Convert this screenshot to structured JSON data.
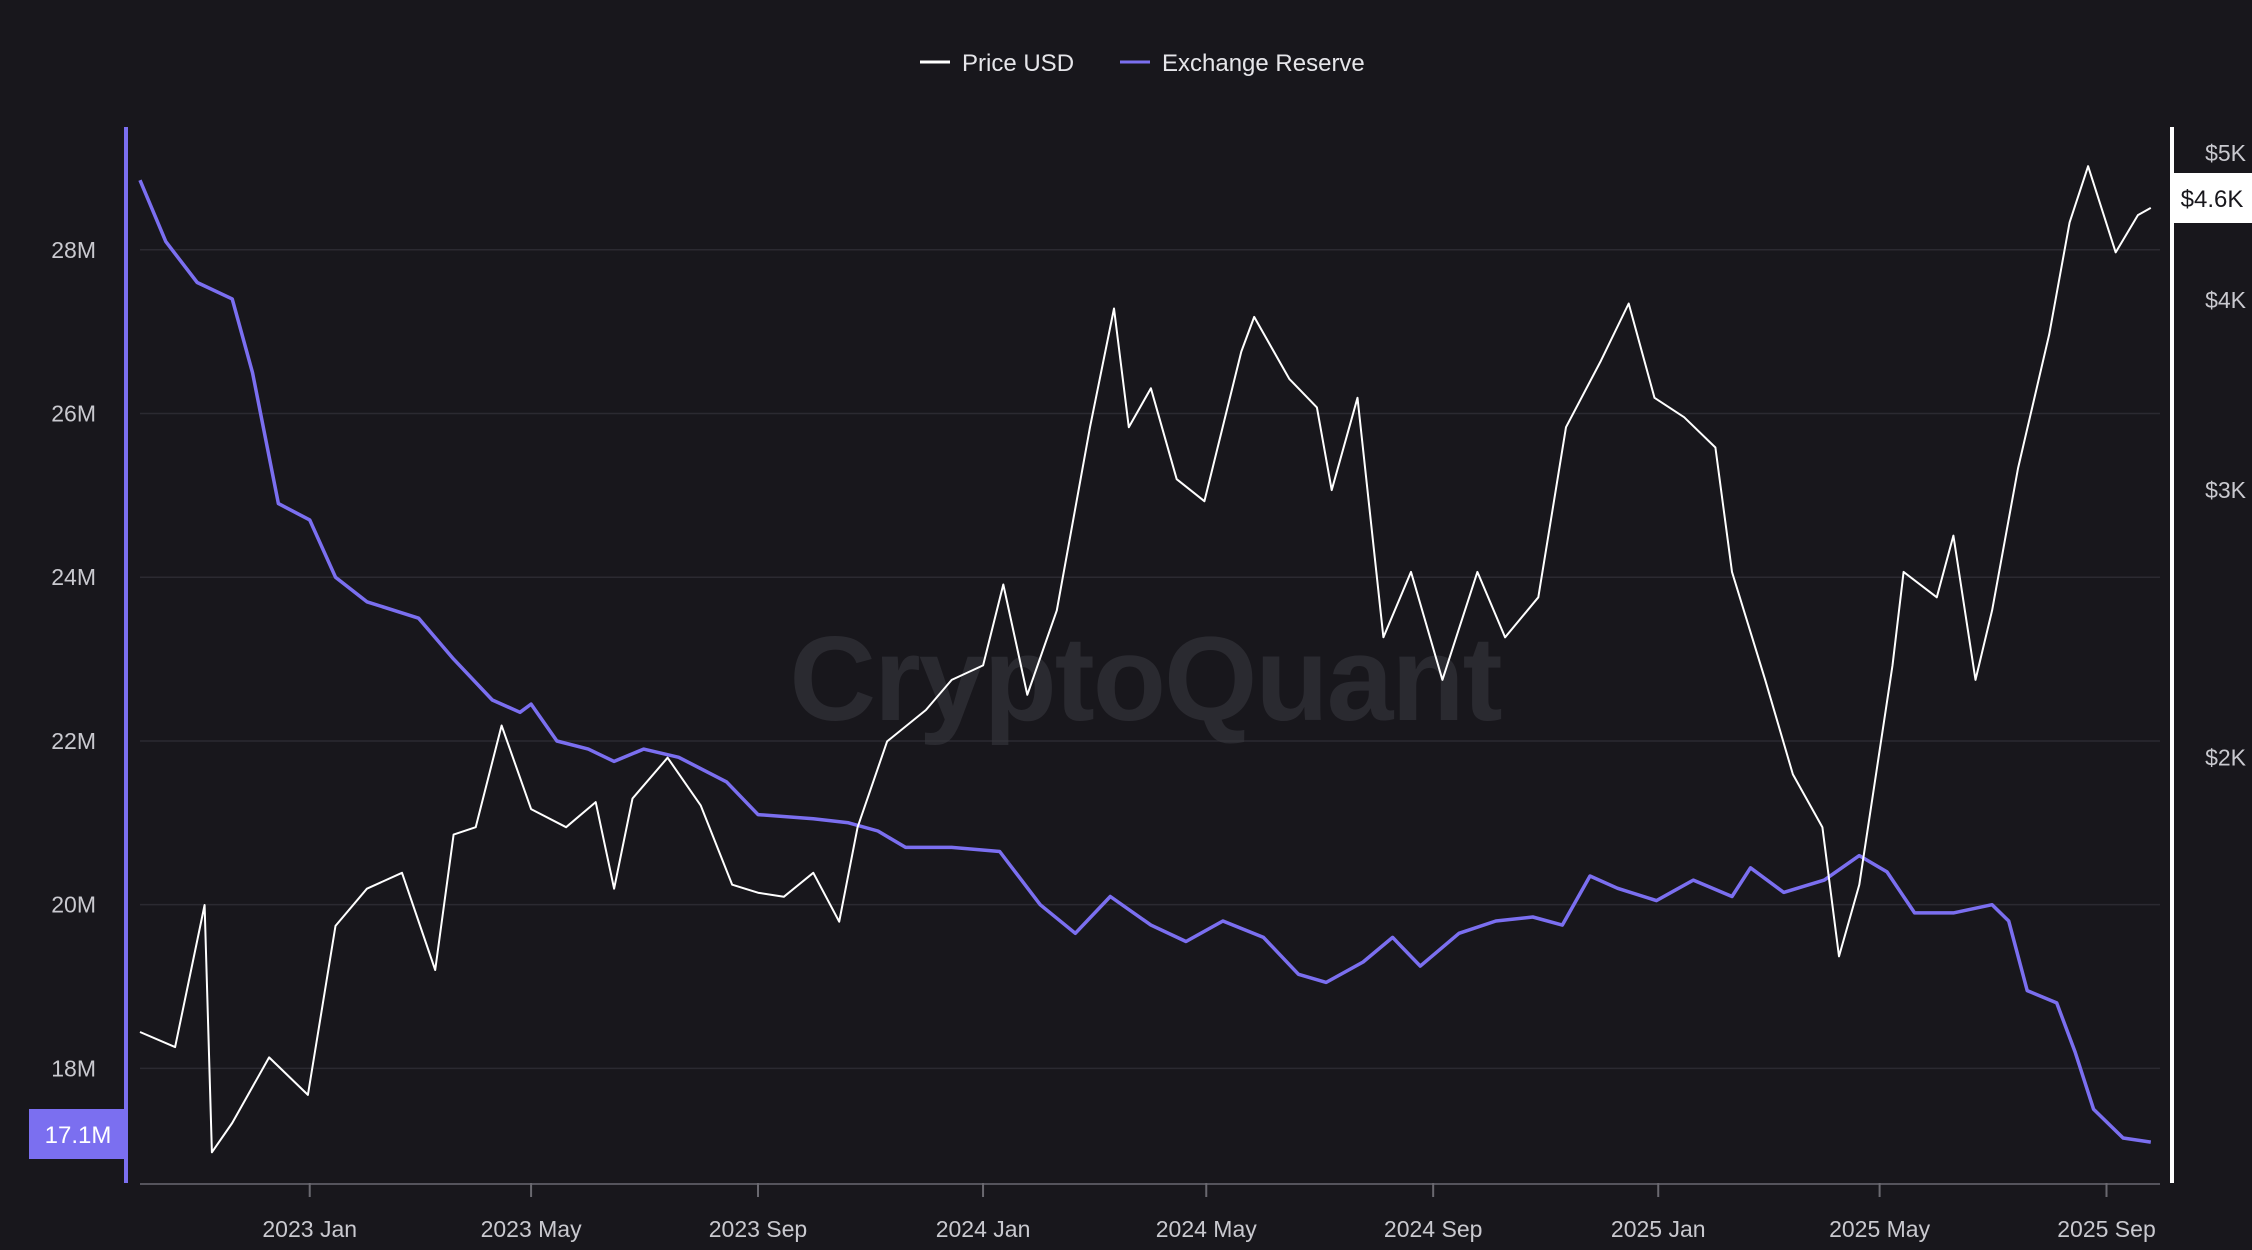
{
  "watermark": "CryptoQuant",
  "colors": {
    "background": "#18171c",
    "price": "#ffffff",
    "reserve": "#7b6ff0",
    "grid": "#2b2a31"
  },
  "chart_data": {
    "type": "line",
    "x_range": [
      "2022-10-01",
      "2025-09-30"
    ],
    "x_ticks": [
      "2023 Jan",
      "2023 May",
      "2023 Sep",
      "2024 Jan",
      "2024 May",
      "2024 Sep",
      "2025 Jan",
      "2025 May",
      "2025 Sep"
    ],
    "x_tick_dates": [
      "2023-01-01",
      "2023-05-01",
      "2023-09-01",
      "2024-01-01",
      "2024-05-01",
      "2024-09-01",
      "2025-01-01",
      "2025-05-01",
      "2025-09-01"
    ],
    "left_axis": {
      "ylim": [
        16.6,
        29.5
      ],
      "ticks": [
        18,
        20,
        22,
        24,
        26,
        28
      ],
      "tick_labels": [
        "18M",
        "20M",
        "22M",
        "24M",
        "26M",
        "28M"
      ],
      "current_label": "17.1M"
    },
    "right_axis": {
      "scale": "log",
      "ylim": [
        1050,
        5200
      ],
      "ticks": [
        2000,
        3000,
        4000,
        5000
      ],
      "tick_labels": [
        "$2K",
        "$3K",
        "$4K",
        "$5K"
      ],
      "current_label": "$4.6K"
    },
    "grid": true,
    "legend_position": "top-center",
    "series": [
      {
        "name": "Price USD",
        "axis": "right",
        "color": "#ffffff",
        "points": [
          [
            "2022-10-01",
            1320
          ],
          [
            "2022-10-20",
            1290
          ],
          [
            "2022-11-05",
            1600
          ],
          [
            "2022-11-09",
            1100
          ],
          [
            "2022-11-20",
            1150
          ],
          [
            "2022-12-10",
            1270
          ],
          [
            "2022-12-31",
            1200
          ],
          [
            "2023-01-15",
            1550
          ],
          [
            "2023-02-01",
            1640
          ],
          [
            "2023-02-20",
            1680
          ],
          [
            "2023-03-10",
            1450
          ],
          [
            "2023-03-20",
            1780
          ],
          [
            "2023-04-01",
            1800
          ],
          [
            "2023-04-15",
            2100
          ],
          [
            "2023-05-01",
            1850
          ],
          [
            "2023-05-20",
            1800
          ],
          [
            "2023-06-05",
            1870
          ],
          [
            "2023-06-15",
            1640
          ],
          [
            "2023-06-25",
            1880
          ],
          [
            "2023-07-14",
            2000
          ],
          [
            "2023-08-01",
            1860
          ],
          [
            "2023-08-18",
            1650
          ],
          [
            "2023-09-01",
            1630
          ],
          [
            "2023-09-15",
            1620
          ],
          [
            "2023-10-01",
            1680
          ],
          [
            "2023-10-15",
            1560
          ],
          [
            "2023-10-25",
            1800
          ],
          [
            "2023-11-10",
            2050
          ],
          [
            "2023-12-01",
            2150
          ],
          [
            "2023-12-15",
            2250
          ],
          [
            "2024-01-01",
            2300
          ],
          [
            "2024-01-12",
            2600
          ],
          [
            "2024-01-25",
            2200
          ],
          [
            "2024-02-10",
            2500
          ],
          [
            "2024-02-28",
            3300
          ],
          [
            "2024-03-12",
            3950
          ],
          [
            "2024-03-20",
            3300
          ],
          [
            "2024-04-01",
            3500
          ],
          [
            "2024-04-15",
            3050
          ],
          [
            "2024-04-30",
            2950
          ],
          [
            "2024-05-20",
            3700
          ],
          [
            "2024-05-27",
            3900
          ],
          [
            "2024-06-15",
            3550
          ],
          [
            "2024-06-30",
            3400
          ],
          [
            "2024-07-08",
            3000
          ],
          [
            "2024-07-22",
            3450
          ],
          [
            "2024-08-05",
            2400
          ],
          [
            "2024-08-20",
            2650
          ],
          [
            "2024-09-06",
            2250
          ],
          [
            "2024-09-25",
            2650
          ],
          [
            "2024-10-10",
            2400
          ],
          [
            "2024-10-28",
            2550
          ],
          [
            "2024-11-12",
            3300
          ],
          [
            "2024-12-01",
            3650
          ],
          [
            "2024-12-16",
            3980
          ],
          [
            "2024-12-30",
            3450
          ],
          [
            "2025-01-15",
            3350
          ],
          [
            "2025-02-01",
            3200
          ],
          [
            "2025-02-10",
            2650
          ],
          [
            "2025-02-28",
            2250
          ],
          [
            "2025-03-15",
            1950
          ],
          [
            "2025-03-31",
            1800
          ],
          [
            "2025-04-09",
            1480
          ],
          [
            "2025-04-20",
            1650
          ],
          [
            "2025-05-08",
            2300
          ],
          [
            "2025-05-14",
            2650
          ],
          [
            "2025-06-01",
            2550
          ],
          [
            "2025-06-10",
            2800
          ],
          [
            "2025-06-22",
            2250
          ],
          [
            "2025-07-01",
            2500
          ],
          [
            "2025-07-15",
            3100
          ],
          [
            "2025-08-01",
            3800
          ],
          [
            "2025-08-12",
            4500
          ],
          [
            "2025-08-22",
            4900
          ],
          [
            "2025-09-06",
            4300
          ],
          [
            "2025-09-18",
            4550
          ],
          [
            "2025-09-25",
            4600
          ]
        ]
      },
      {
        "name": "Exchange Reserve",
        "axis": "left",
        "color": "#7b6ff0",
        "points": [
          [
            "2022-10-01",
            28.85
          ],
          [
            "2022-10-15",
            28.1
          ],
          [
            "2022-11-01",
            27.6
          ],
          [
            "2022-11-20",
            27.4
          ],
          [
            "2022-12-01",
            26.5
          ],
          [
            "2022-12-15",
            24.9
          ],
          [
            "2023-01-01",
            24.7
          ],
          [
            "2023-01-15",
            24.0
          ],
          [
            "2023-02-01",
            23.7
          ],
          [
            "2023-03-01",
            23.5
          ],
          [
            "2023-03-20",
            23.0
          ],
          [
            "2023-04-10",
            22.5
          ],
          [
            "2023-04-25",
            22.35
          ],
          [
            "2023-05-01",
            22.45
          ],
          [
            "2023-05-15",
            22.0
          ],
          [
            "2023-06-01",
            21.9
          ],
          [
            "2023-06-15",
            21.75
          ],
          [
            "2023-07-01",
            21.9
          ],
          [
            "2023-07-20",
            21.8
          ],
          [
            "2023-08-15",
            21.5
          ],
          [
            "2023-09-01",
            21.1
          ],
          [
            "2023-10-01",
            21.05
          ],
          [
            "2023-10-20",
            21.0
          ],
          [
            "2023-11-05",
            20.9
          ],
          [
            "2023-11-20",
            20.7
          ],
          [
            "2023-12-15",
            20.7
          ],
          [
            "2024-01-10",
            20.65
          ],
          [
            "2024-02-01",
            20.0
          ],
          [
            "2024-02-20",
            19.65
          ],
          [
            "2024-03-10",
            20.1
          ],
          [
            "2024-04-01",
            19.75
          ],
          [
            "2024-04-20",
            19.55
          ],
          [
            "2024-05-10",
            19.8
          ],
          [
            "2024-06-01",
            19.6
          ],
          [
            "2024-06-20",
            19.15
          ],
          [
            "2024-07-05",
            19.05
          ],
          [
            "2024-07-25",
            19.3
          ],
          [
            "2024-08-10",
            19.6
          ],
          [
            "2024-08-25",
            19.25
          ],
          [
            "2024-09-15",
            19.65
          ],
          [
            "2024-10-05",
            19.8
          ],
          [
            "2024-10-25",
            19.85
          ],
          [
            "2024-11-10",
            19.75
          ],
          [
            "2024-11-25",
            20.35
          ],
          [
            "2024-12-10",
            20.2
          ],
          [
            "2024-12-31",
            20.05
          ],
          [
            "2025-01-20",
            20.3
          ],
          [
            "2025-02-10",
            20.1
          ],
          [
            "2025-02-20",
            20.45
          ],
          [
            "2025-03-10",
            20.15
          ],
          [
            "2025-04-01",
            20.3
          ],
          [
            "2025-04-20",
            20.6
          ],
          [
            "2025-05-05",
            20.4
          ],
          [
            "2025-05-20",
            19.9
          ],
          [
            "2025-06-10",
            19.9
          ],
          [
            "2025-07-01",
            20.0
          ],
          [
            "2025-07-10",
            19.8
          ],
          [
            "2025-07-20",
            18.95
          ],
          [
            "2025-08-05",
            18.8
          ],
          [
            "2025-08-15",
            18.2
          ],
          [
            "2025-08-25",
            17.5
          ],
          [
            "2025-09-10",
            17.15
          ],
          [
            "2025-09-25",
            17.1
          ]
        ]
      }
    ]
  }
}
